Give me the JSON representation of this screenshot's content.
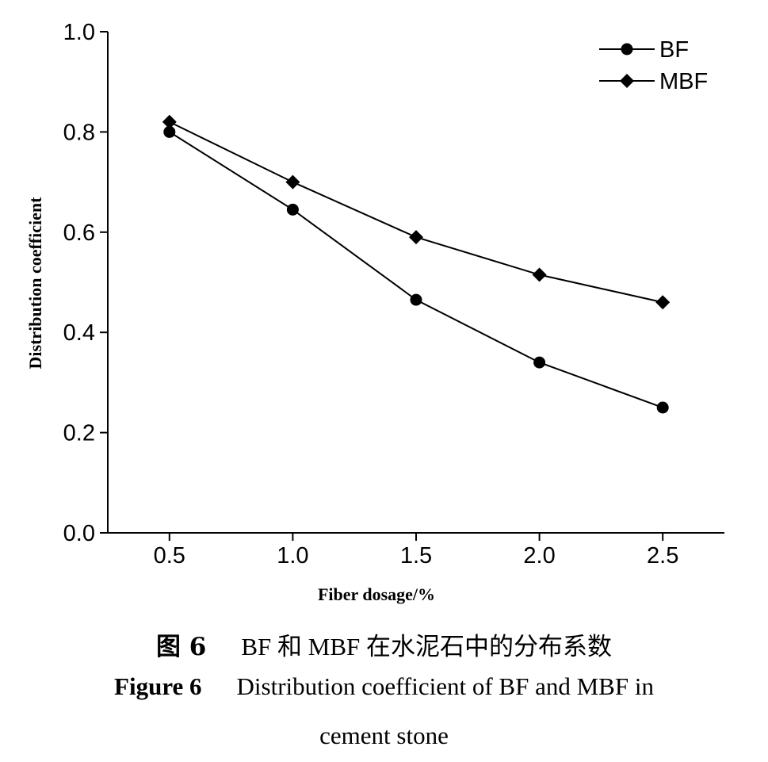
{
  "chart_data": {
    "type": "line",
    "x": [
      0.5,
      1.0,
      1.5,
      2.0,
      2.5
    ],
    "x_tick_labels": [
      "0.5",
      "1.0",
      "1.5",
      "2.0",
      "2.5"
    ],
    "y_tick_labels": [
      "0.0",
      "0.2",
      "0.4",
      "0.6",
      "0.8",
      "1.0"
    ],
    "y_ticks": [
      0.0,
      0.2,
      0.4,
      0.6,
      0.8,
      1.0
    ],
    "xlim": [
      0.25,
      2.75
    ],
    "ylim": [
      0.0,
      1.0
    ],
    "xlabel": "Fiber dosage/%",
    "ylabel": "Distribution coefficient",
    "grid": false,
    "legend_position": "top-right",
    "series": [
      {
        "name": "BF",
        "marker": "circle",
        "color": "#000000",
        "values": [
          0.8,
          0.645,
          0.465,
          0.34,
          0.25
        ]
      },
      {
        "name": "MBF",
        "marker": "diamond",
        "color": "#000000",
        "values": [
          0.82,
          0.7,
          0.59,
          0.515,
          0.46
        ]
      }
    ]
  },
  "caption": {
    "cn_label": "图 6",
    "cn_text": "BF 和 MBF 在水泥石中的分布系数",
    "en_label": "Figure 6",
    "en_text_line1": "Distribution coefficient of BF and MBF in",
    "en_text_line2": "cement stone"
  }
}
